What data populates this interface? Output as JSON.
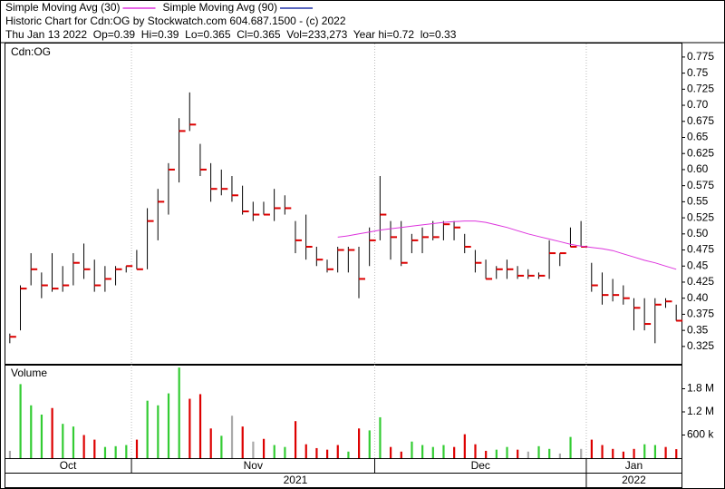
{
  "chart_data": [
    {
      "type": "ohlc",
      "title": "Historic Chart for Cdn:OG by Stockwatch.com 604.687.1500 - (c) 2022",
      "subtitle": "Thu Jan 13 2022  Op=0.39  Hi=0.39  Lo=0.365  Cl=0.365  Vol=233,273  Year hi=0.72  lo=0.33",
      "label": "Cdn:OG",
      "bar_color": "#000000",
      "close_color": "#dd0000",
      "high": [
        0.345,
        0.42,
        0.47,
        0.44,
        0.47,
        0.45,
        0.47,
        0.485,
        0.46,
        0.45,
        0.45,
        0.45,
        0.475,
        0.54,
        0.57,
        0.61,
        0.68,
        0.72,
        0.64,
        0.61,
        0.6,
        0.59,
        0.575,
        0.55,
        0.55,
        0.57,
        0.56,
        0.52,
        0.53,
        0.48,
        0.46,
        0.48,
        0.48,
        0.48,
        0.51,
        0.59,
        0.52,
        0.52,
        0.5,
        0.51,
        0.52,
        0.52,
        0.52,
        0.5,
        0.475,
        0.46,
        0.45,
        0.46,
        0.45,
        0.445,
        0.44,
        0.49,
        0.47,
        0.51,
        0.52,
        0.455,
        0.44,
        0.43,
        0.42,
        0.4,
        0.4,
        0.4,
        0.4,
        0.39
      ],
      "low": [
        0.33,
        0.35,
        0.42,
        0.4,
        0.41,
        0.41,
        0.42,
        0.43,
        0.41,
        0.41,
        0.42,
        0.44,
        0.445,
        0.445,
        0.49,
        0.53,
        0.58,
        0.66,
        0.59,
        0.55,
        0.56,
        0.55,
        0.53,
        0.52,
        0.53,
        0.52,
        0.53,
        0.47,
        0.46,
        0.45,
        0.44,
        0.44,
        0.44,
        0.4,
        0.45,
        0.49,
        0.46,
        0.45,
        0.47,
        0.47,
        0.49,
        0.49,
        0.49,
        0.47,
        0.44,
        0.43,
        0.43,
        0.43,
        0.43,
        0.43,
        0.43,
        0.43,
        0.45,
        0.48,
        0.48,
        0.41,
        0.39,
        0.395,
        0.39,
        0.35,
        0.35,
        0.33,
        0.385,
        0.365
      ],
      "close": [
        0.34,
        0.415,
        0.445,
        0.42,
        0.415,
        0.42,
        0.455,
        0.445,
        0.42,
        0.43,
        0.445,
        0.45,
        0.445,
        0.52,
        0.55,
        0.6,
        0.66,
        0.67,
        0.6,
        0.57,
        0.57,
        0.56,
        0.535,
        0.53,
        0.53,
        0.54,
        0.54,
        0.49,
        0.48,
        0.46,
        0.445,
        0.475,
        0.475,
        0.43,
        0.49,
        0.53,
        0.495,
        0.455,
        0.49,
        0.495,
        0.495,
        0.515,
        0.51,
        0.48,
        0.455,
        0.43,
        0.445,
        0.445,
        0.435,
        0.435,
        0.435,
        0.47,
        0.47,
        0.48,
        0.48,
        0.42,
        0.405,
        0.405,
        0.4,
        0.385,
        0.36,
        0.39,
        0.395,
        0.365
      ],
      "series": [
        {
          "name": "Simple Moving Avg (30)",
          "color": "#dd33dd",
          "values": [
            null,
            null,
            null,
            null,
            null,
            null,
            null,
            null,
            null,
            null,
            null,
            null,
            null,
            null,
            null,
            null,
            null,
            null,
            null,
            null,
            null,
            null,
            null,
            null,
            null,
            null,
            null,
            null,
            null,
            null,
            null,
            0.495,
            0.497,
            0.5,
            0.503,
            0.506,
            0.508,
            0.51,
            0.512,
            0.514,
            0.516,
            0.518,
            0.519,
            0.52,
            0.52,
            0.518,
            0.514,
            0.51,
            0.505,
            0.5,
            0.496,
            0.492,
            0.488,
            0.484,
            0.481,
            0.479,
            0.477,
            0.474,
            0.469,
            0.464,
            0.459,
            0.455,
            0.45,
            0.445
          ]
        },
        {
          "name": "Simple Moving Avg (90)",
          "color": "#2233aa",
          "values": [
            null,
            null,
            null,
            null,
            null,
            null,
            null,
            null,
            null,
            null,
            null,
            null,
            null,
            null,
            null,
            null,
            null,
            null,
            null,
            null,
            null,
            null,
            null,
            null,
            null,
            null,
            null,
            null,
            null,
            null,
            null,
            null,
            null,
            null,
            null,
            null,
            null,
            null,
            null,
            null,
            null,
            null,
            null,
            null,
            null,
            null,
            null,
            null,
            null,
            null,
            null,
            null,
            null,
            null,
            null,
            null,
            null,
            null,
            null,
            null,
            null,
            null,
            null,
            null
          ]
        }
      ],
      "ylim": [
        0.298,
        0.796
      ],
      "yticks": [
        0.325,
        0.35,
        0.375,
        {
          "value": 0.4,
          "label": "0.40"
        },
        0.425,
        0.45,
        0.475,
        {
          "value": 0.5,
          "label": "0.50"
        },
        0.525,
        0.55,
        0.575,
        {
          "value": 0.6,
          "label": "0.60"
        },
        0.625,
        0.65,
        0.675,
        {
          "value": 0.7,
          "label": "0.70"
        },
        0.725,
        0.75,
        0.775
      ]
    },
    {
      "type": "bar",
      "title": "Volume",
      "categories": [
        "Oct",
        null,
        null,
        null,
        null,
        null,
        null,
        null,
        null,
        null,
        null,
        null,
        "Nov",
        null,
        null,
        null,
        null,
        null,
        null,
        null,
        null,
        null,
        null,
        null,
        null,
        null,
        null,
        null,
        null,
        null,
        null,
        null,
        null,
        null,
        null,
        "Dec",
        null,
        null,
        null,
        null,
        null,
        null,
        null,
        null,
        null,
        null,
        null,
        null,
        null,
        null,
        null,
        null,
        null,
        null,
        null,
        "Jan",
        null,
        null,
        null,
        null,
        null,
        null,
        null,
        null
      ],
      "years": [
        "2021",
        null,
        null,
        null,
        null,
        null,
        null,
        null,
        null,
        null,
        null,
        null,
        null,
        null,
        null,
        null,
        null,
        null,
        null,
        null,
        null,
        null,
        null,
        null,
        null,
        null,
        null,
        null,
        null,
        null,
        null,
        null,
        null,
        null,
        null,
        null,
        null,
        null,
        null,
        null,
        null,
        null,
        null,
        null,
        null,
        null,
        null,
        null,
        null,
        null,
        null,
        null,
        null,
        null,
        null,
        "2022",
        null,
        null,
        null,
        null,
        null,
        null,
        null,
        null
      ],
      "values": [
        190000,
        1920000,
        1370000,
        1130000,
        1300000,
        890000,
        820000,
        600000,
        480000,
        290000,
        310000,
        340000,
        480000,
        1490000,
        1370000,
        1680000,
        2350000,
        1540000,
        1660000,
        770000,
        580000,
        1100000,
        820000,
        430000,
        500000,
        340000,
        290000,
        960000,
        360000,
        260000,
        220000,
        340000,
        170000,
        770000,
        720000,
        1060000,
        290000,
        170000,
        430000,
        340000,
        290000,
        340000,
        290000,
        620000,
        360000,
        190000,
        220000,
        290000,
        220000,
        170000,
        310000,
        240000,
        120000,
        550000,
        240000,
        480000,
        340000,
        240000,
        170000,
        240000,
        360000,
        340000,
        290000,
        233273
      ],
      "colors": [
        "#aaaaaa",
        "#33cc33",
        "#33cc33",
        "#33cc33",
        "#dd0000",
        "#33cc33",
        "#33cc33",
        "#dd0000",
        "#dd0000",
        "#33cc33",
        "#33cc33",
        "#33cc33",
        "#dd0000",
        "#33cc33",
        "#33cc33",
        "#33cc33",
        "#33cc33",
        "#dd0000",
        "#dd0000",
        "#dd0000",
        "#33cc33",
        "#aaaaaa",
        "#dd0000",
        "#aaaaaa",
        "#dd0000",
        "#33cc33",
        "#33cc33",
        "#dd0000",
        "#dd0000",
        "#dd0000",
        "#dd0000",
        "#dd0000",
        "#33cc33",
        "#dd0000",
        "#33cc33",
        "#33cc33",
        "#dd0000",
        "#dd0000",
        "#33cc33",
        "#33cc33",
        "#33cc33",
        "#33cc33",
        "#dd0000",
        "#dd0000",
        "#dd0000",
        "#dd0000",
        "#33cc33",
        "#33cc33",
        "#dd0000",
        "#aaaaaa",
        "#33cc33",
        "#33cc33",
        "#aaaaaa",
        "#33cc33",
        "#aaaaaa",
        "#dd0000",
        "#dd0000",
        "#dd0000",
        "#dd0000",
        "#dd0000",
        "#33cc33",
        "#33cc33",
        "#dd0000",
        "#dd0000"
      ],
      "ylim": [
        0,
        2400000
      ],
      "yticks": [
        {
          "value": 600000,
          "label": "600 k"
        },
        {
          "value": 1200000,
          "label": "1.2 M"
        },
        {
          "value": 1800000,
          "label": "1.8 M"
        }
      ]
    }
  ]
}
